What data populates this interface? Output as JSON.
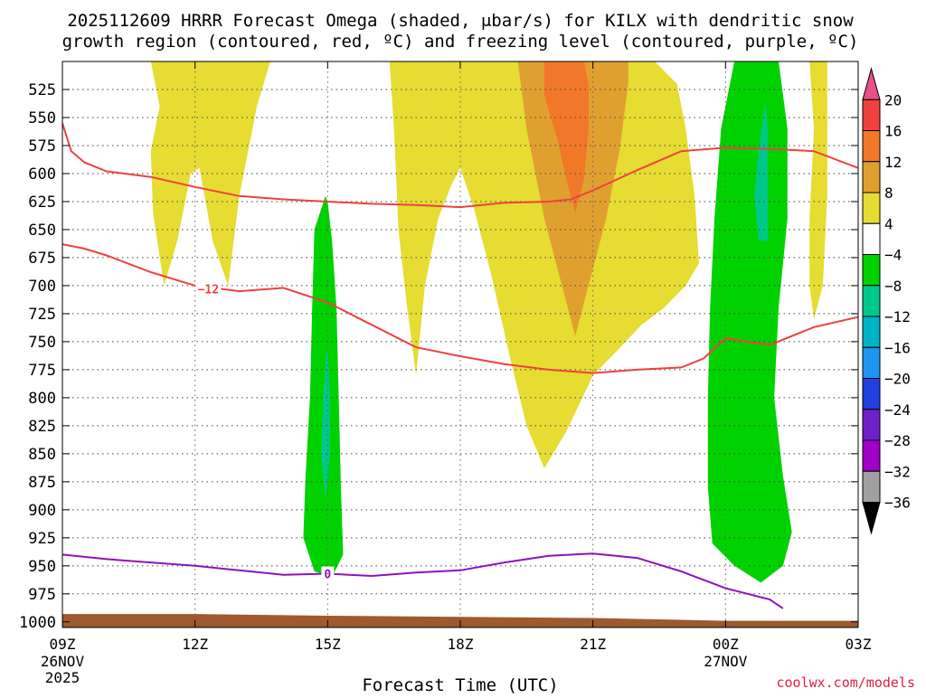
{
  "chart_data": {
    "type": "contour-time-height",
    "title_line1": "2025112609 HRRR Forecast Omega (shaded, μbar/s) for KILX with dendritic snow",
    "title_line2": "growth region (contoured, red, ºC) and freezing level (contoured, purple, ºC)",
    "xlabel": "Forecast Time (UTC)",
    "credit": "coolwx.com/models",
    "x_range_hours": [
      0,
      18
    ],
    "y_range_hpa": [
      1005,
      500
    ],
    "y_ticks": [
      525,
      550,
      575,
      600,
      625,
      650,
      675,
      700,
      725,
      750,
      775,
      800,
      825,
      850,
      875,
      900,
      925,
      950,
      975,
      1000
    ],
    "y_tick_labels": [
      "525",
      "550",
      "575",
      "600",
      "625",
      "650",
      "675",
      "700",
      "725",
      "750",
      "775",
      "800",
      "825",
      "850",
      "875",
      "900",
      "925",
      "950",
      "975",
      "1000"
    ],
    "x_ticks": [
      {
        "hour": 0,
        "label": "09Z",
        "sub1": "26NOV",
        "sub2": "2025"
      },
      {
        "hour": 3,
        "label": "12Z"
      },
      {
        "hour": 6,
        "label": "15Z"
      },
      {
        "hour": 9,
        "label": "18Z"
      },
      {
        "hour": 12,
        "label": "21Z"
      },
      {
        "hour": 15,
        "label": "00Z",
        "sub1": "27NOV"
      },
      {
        "hour": 18,
        "label": "03Z"
      }
    ],
    "colorbar": {
      "labels": [
        "20",
        "16",
        "12",
        "8",
        "4",
        "−4",
        "−8",
        "−12",
        "−16",
        "−20",
        "−24",
        "−28",
        "−32",
        "−36"
      ],
      "bins": [
        {
          "color": "#e8508a",
          "lo": 20,
          "hi": null
        },
        {
          "color": "#f04040",
          "lo": 16,
          "hi": 20
        },
        {
          "color": "#f07828",
          "lo": 12,
          "hi": 16
        },
        {
          "color": "#e0a030",
          "lo": 8,
          "hi": 12
        },
        {
          "color": "#e6dc32",
          "lo": 4,
          "hi": 8
        },
        {
          "color": "#ffffff",
          "lo": -4,
          "hi": 4
        },
        {
          "color": "#00d200",
          "lo": -8,
          "hi": -4
        },
        {
          "color": "#00c88c",
          "lo": -12,
          "hi": -8
        },
        {
          "color": "#00b4c8",
          "lo": -16,
          "hi": -12
        },
        {
          "color": "#1e96f0",
          "lo": -20,
          "hi": -16
        },
        {
          "color": "#2040e0",
          "lo": -24,
          "hi": -20
        },
        {
          "color": "#7020c8",
          "lo": -28,
          "hi": -24
        },
        {
          "color": "#a000c8",
          "lo": -32,
          "hi": -28
        },
        {
          "color": "#a0a0a0",
          "lo": -36,
          "hi": -32
        },
        {
          "color": "#000000",
          "lo": null,
          "hi": -36
        }
      ]
    },
    "shaded_regions": [
      {
        "name": "omega-pos-4-8-early",
        "level": "4 to 8",
        "color": "#e6dc32",
        "points": [
          [
            2,
            500
          ],
          [
            2.2,
            540
          ],
          [
            2.0,
            580
          ],
          [
            2.05,
            635
          ],
          [
            2.3,
            700
          ],
          [
            2.6,
            660
          ],
          [
            2.9,
            600
          ],
          [
            3.1,
            595
          ],
          [
            3.4,
            660
          ],
          [
            3.75,
            700
          ],
          [
            4.0,
            620
          ],
          [
            4.4,
            540
          ],
          [
            4.7,
            500
          ]
        ]
      },
      {
        "name": "omega-pos-4-8-midday",
        "level": "4 to 8",
        "color": "#e6dc32",
        "points": [
          [
            7.4,
            500
          ],
          [
            7.5,
            560
          ],
          [
            7.6,
            650
          ],
          [
            7.8,
            720
          ],
          [
            8.0,
            780
          ],
          [
            8.2,
            700
          ],
          [
            8.5,
            640
          ],
          [
            8.8,
            610
          ],
          [
            9.0,
            595
          ],
          [
            9.3,
            630
          ],
          [
            9.7,
            690
          ],
          [
            10.1,
            760
          ],
          [
            10.5,
            825
          ],
          [
            10.9,
            863
          ],
          [
            11.4,
            830
          ],
          [
            12.0,
            780
          ],
          [
            12.5,
            760
          ],
          [
            13.1,
            735
          ],
          [
            13.6,
            720
          ],
          [
            14.1,
            700
          ],
          [
            14.4,
            680
          ],
          [
            14.3,
            620
          ],
          [
            14.1,
            560
          ],
          [
            13.9,
            520
          ],
          [
            13.4,
            500
          ]
        ]
      },
      {
        "name": "omega-pos-8-12",
        "level": "8 to 12",
        "color": "#e0a030",
        "points": [
          [
            10.3,
            500
          ],
          [
            10.5,
            560
          ],
          [
            10.9,
            640
          ],
          [
            11.3,
            700
          ],
          [
            11.6,
            745
          ],
          [
            11.9,
            700
          ],
          [
            12.3,
            640
          ],
          [
            12.6,
            580
          ],
          [
            12.8,
            520
          ],
          [
            12.8,
            500
          ]
        ]
      },
      {
        "name": "omega-pos-12-16",
        "level": "12 to 16",
        "color": "#f07828",
        "points": [
          [
            10.9,
            500
          ],
          [
            10.9,
            530
          ],
          [
            11.2,
            570
          ],
          [
            11.4,
            605
          ],
          [
            11.6,
            635
          ],
          [
            11.8,
            605
          ],
          [
            11.9,
            560
          ],
          [
            11.9,
            520
          ],
          [
            11.8,
            500
          ]
        ]
      },
      {
        "name": "omega-pos-4-8-late",
        "level": "4 to 8",
        "color": "#e6dc32",
        "points": [
          [
            16.9,
            500
          ],
          [
            17.0,
            560
          ],
          [
            16.9,
            640
          ],
          [
            16.9,
            700
          ],
          [
            17.0,
            730
          ],
          [
            17.2,
            700
          ],
          [
            17.3,
            620
          ],
          [
            17.3,
            540
          ],
          [
            17.3,
            500
          ]
        ]
      },
      {
        "name": "omega-neg-4-8-15z",
        "level": "-4 to -8",
        "color": "#00d200",
        "points": [
          [
            5.95,
            620
          ],
          [
            5.7,
            650
          ],
          [
            5.65,
            720
          ],
          [
            5.6,
            800
          ],
          [
            5.5,
            870
          ],
          [
            5.45,
            925
          ],
          [
            5.7,
            955
          ],
          [
            6.1,
            960
          ],
          [
            6.35,
            940
          ],
          [
            6.3,
            880
          ],
          [
            6.25,
            800
          ],
          [
            6.2,
            720
          ],
          [
            6.1,
            660
          ],
          [
            6.0,
            625
          ]
        ]
      },
      {
        "name": "omega-neg-8-12-15z",
        "level": "-8 to -12",
        "color": "#00c88c",
        "points": [
          [
            5.97,
            760
          ],
          [
            5.9,
            800
          ],
          [
            5.85,
            850
          ],
          [
            5.95,
            890
          ],
          [
            6.05,
            850
          ],
          [
            6.05,
            800
          ],
          [
            6.0,
            760
          ]
        ]
      },
      {
        "name": "omega-neg-4-8-00z",
        "level": "-4 to -8",
        "color": "#00d200",
        "points": [
          [
            15.2,
            500
          ],
          [
            14.9,
            560
          ],
          [
            14.75,
            640
          ],
          [
            14.65,
            720
          ],
          [
            14.6,
            800
          ],
          [
            14.6,
            880
          ],
          [
            14.7,
            930
          ],
          [
            15.2,
            950
          ],
          [
            15.8,
            965
          ],
          [
            16.3,
            950
          ],
          [
            16.5,
            920
          ],
          [
            16.3,
            870
          ],
          [
            16.1,
            800
          ],
          [
            16.2,
            720
          ],
          [
            16.4,
            640
          ],
          [
            16.4,
            560
          ],
          [
            16.2,
            500
          ]
        ]
      },
      {
        "name": "omega-neg-8-12-00z",
        "level": "-8 to -12",
        "color": "#00c88c",
        "points": [
          [
            15.9,
            535
          ],
          [
            15.75,
            580
          ],
          [
            15.65,
            620
          ],
          [
            15.75,
            660
          ],
          [
            15.95,
            660
          ],
          [
            15.95,
            600
          ],
          [
            15.95,
            560
          ]
        ]
      }
    ],
    "contours": [
      {
        "name": "dgz-minus-12-upper",
        "color": "#f04040",
        "label": "",
        "points": [
          [
            0,
            555
          ],
          [
            0.2,
            580
          ],
          [
            0.5,
            590
          ],
          [
            1.0,
            598
          ],
          [
            2.0,
            603
          ],
          [
            3.0,
            612
          ],
          [
            4.0,
            620
          ],
          [
            5.0,
            623
          ],
          [
            6.0,
            625
          ],
          [
            7.0,
            627
          ],
          [
            8.0,
            628
          ],
          [
            9.0,
            630
          ],
          [
            10.0,
            626
          ],
          [
            11.0,
            625
          ],
          [
            11.5,
            623
          ],
          [
            12.0,
            615
          ],
          [
            13.0,
            597
          ],
          [
            14.0,
            580
          ],
          [
            15.0,
            577
          ],
          [
            16.0,
            578
          ],
          [
            17.0,
            580
          ],
          [
            18.0,
            595
          ]
        ]
      },
      {
        "name": "dgz-minus-12-lower",
        "color": "#f04040",
        "label": "−12",
        "points": [
          [
            0,
            663
          ],
          [
            0.5,
            667
          ],
          [
            1.0,
            673
          ],
          [
            2.0,
            688
          ],
          [
            3.0,
            700
          ],
          [
            4.0,
            705
          ],
          [
            5.0,
            702
          ],
          [
            6.0,
            715
          ],
          [
            7.0,
            735
          ],
          [
            8.0,
            755
          ],
          [
            9.0,
            763
          ],
          [
            10.0,
            770
          ],
          [
            11.0,
            775
          ],
          [
            12.0,
            778
          ],
          [
            13.0,
            775
          ],
          [
            14.0,
            773
          ],
          [
            14.5,
            765
          ],
          [
            15.0,
            747
          ],
          [
            16.0,
            753
          ],
          [
            17.0,
            737
          ],
          [
            18.0,
            728
          ]
        ]
      },
      {
        "name": "freezing-level-0",
        "color": "#9010c0",
        "label": "0",
        "points": [
          [
            0,
            940
          ],
          [
            1.0,
            944
          ],
          [
            2.0,
            947
          ],
          [
            3.0,
            950
          ],
          [
            4.0,
            954
          ],
          [
            5.0,
            958
          ],
          [
            6.0,
            957
          ],
          [
            7.0,
            959
          ],
          [
            8.0,
            956
          ],
          [
            9.0,
            954
          ],
          [
            10.0,
            947
          ],
          [
            11.0,
            941
          ],
          [
            12.0,
            939
          ],
          [
            13.0,
            943
          ],
          [
            14.0,
            955
          ],
          [
            15.0,
            970
          ],
          [
            16.0,
            980
          ],
          [
            16.3,
            988
          ]
        ]
      }
    ],
    "terrain": {
      "name": "ground-surface",
      "color": "#9e5a2e",
      "points": [
        [
          0,
          993
        ],
        [
          3,
          993
        ],
        [
          6,
          994.5
        ],
        [
          9,
          995.5
        ],
        [
          12,
          996.5
        ],
        [
          15,
          999
        ],
        [
          18,
          999
        ]
      ]
    }
  }
}
